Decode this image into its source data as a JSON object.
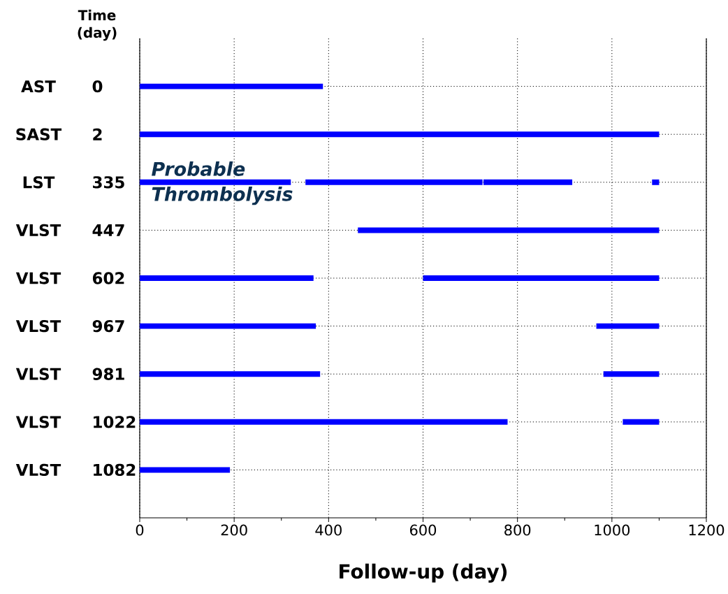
{
  "chart_data": {
    "type": "bar",
    "orientation": "horizontal",
    "categories": [
      "AST",
      "SAST",
      "LST",
      "VLST",
      "VLST",
      "VLST",
      "VLST",
      "VLST",
      "VLST"
    ],
    "y2_categories": [
      "0",
      "2",
      "335",
      "447",
      "602",
      "967",
      "981",
      "1022",
      "1082"
    ],
    "ylabel": "Time (day)",
    "xlabel": "Follow-up (day)",
    "series": [
      {
        "color": "#0000ff",
        "base": [
          0,
          0,
          0,
          null,
          0,
          0,
          0,
          0,
          0
        ],
        "values": [
          388,
          1100,
          320,
          null,
          368,
          373,
          382,
          779,
          191
        ]
      },
      {
        "color": "#0000ff",
        "base": [
          null,
          null,
          351,
          462,
          600,
          967,
          982,
          1023,
          null
        ],
        "values": [
          null,
          null,
          375,
          638,
          500,
          133,
          118,
          77,
          null
        ]
      },
      {
        "color": "#0000ff",
        "base": [
          null,
          null,
          728,
          null,
          null,
          null,
          null,
          null,
          null
        ],
        "values": [
          null,
          null,
          188,
          null,
          null,
          null,
          null,
          null,
          null
        ]
      },
      {
        "color": "#0000ff",
        "base": [
          null,
          null,
          1085,
          null,
          null,
          null,
          null,
          null,
          null
        ],
        "values": [
          null,
          null,
          15,
          null,
          null,
          null,
          null,
          null,
          null
        ]
      }
    ],
    "xlim": [
      0,
      1200
    ],
    "xticks": [
      0,
      {
        "value": 100,
        "label": null
      },
      200,
      {
        "value": 300,
        "label": null
      },
      400,
      {
        "value": 500,
        "label": null
      },
      600,
      {
        "value": 700,
        "label": null
      },
      800,
      {
        "value": 900,
        "label": null
      },
      1000,
      {
        "value": 1100,
        "label": null
      },
      1200
    ],
    "grid": true,
    "annotations": [
      "Probable Thrombolysis"
    ]
  }
}
